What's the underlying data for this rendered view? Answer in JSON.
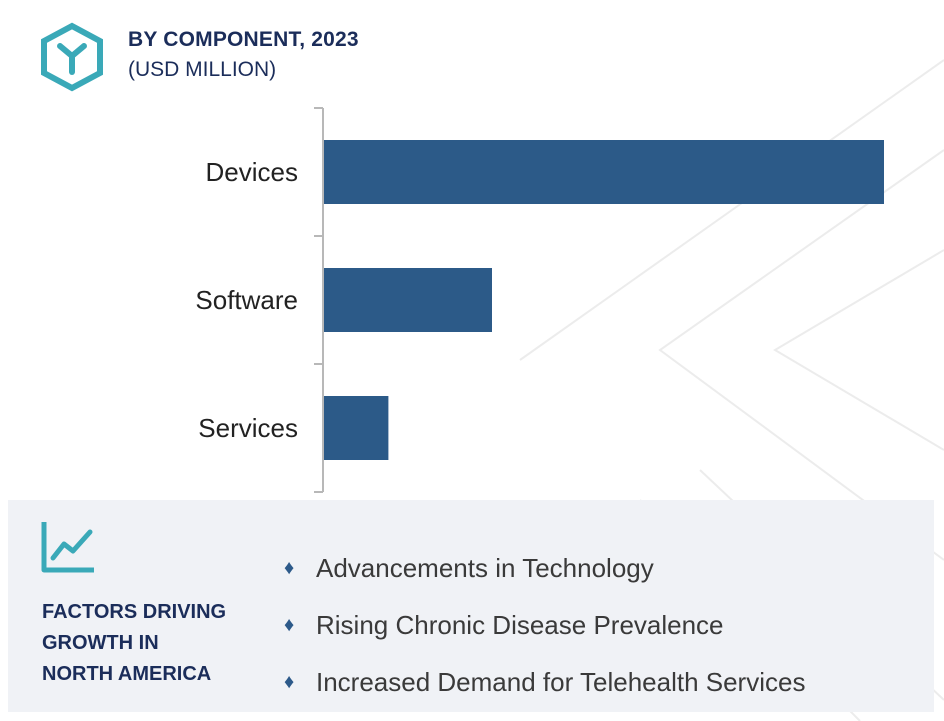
{
  "header": {
    "title": "BY COMPONENT, 2023",
    "subtitle": "(USD MILLION)",
    "icon": "logo-hexagon-icon"
  },
  "colors": {
    "bar": "#2c5a88",
    "title": "#1b2d5a",
    "icon": "#3aa9b8",
    "panel": "#f0f2f6"
  },
  "chart_data": {
    "type": "bar",
    "orientation": "horizontal",
    "categories": [
      "Devices",
      "Software",
      "Services"
    ],
    "values": [
      100,
      30,
      11.5
    ],
    "value_note": "relative bar lengths (no axis values shown)",
    "xlim": [
      0,
      100
    ],
    "title": "BY COMPONENT, 2023",
    "subtitle": "(USD MILLION)",
    "xlabel": "",
    "ylabel": "",
    "grid": false,
    "legend": "none"
  },
  "factors": {
    "icon": "line-chart-icon",
    "title_lines": [
      "FACTORS DRIVING",
      "GROWTH IN",
      "NORTH AMERICA"
    ],
    "items": [
      "Advancements in Technology",
      "Rising Chronic Disease Prevalence",
      "Increased Demand for Telehealth Services"
    ]
  }
}
